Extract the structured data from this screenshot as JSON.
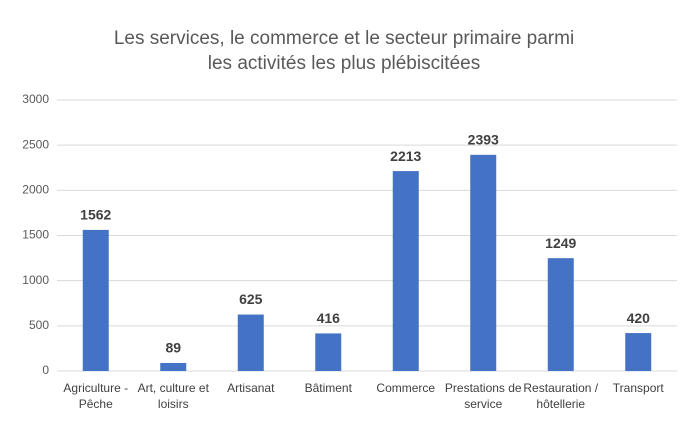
{
  "chart_data": {
    "type": "bar",
    "title": "Les services, le commerce et le secteur primaire parmi les activités les plus plébiscitées",
    "categories": [
      "Agriculture - Pêche",
      "Art, culture et loisirs",
      "Artisanat",
      "Bâtiment",
      "Commerce",
      "Prestations de service",
      "Restauration / hôtellerie",
      "Transport"
    ],
    "values": [
      1562,
      89,
      625,
      416,
      2213,
      2393,
      1249,
      420
    ],
    "color": "#4472c4",
    "ylim": [
      0,
      3000
    ],
    "yticks": [
      0,
      500,
      1000,
      1500,
      2000,
      2500,
      3000
    ],
    "grid": true
  }
}
